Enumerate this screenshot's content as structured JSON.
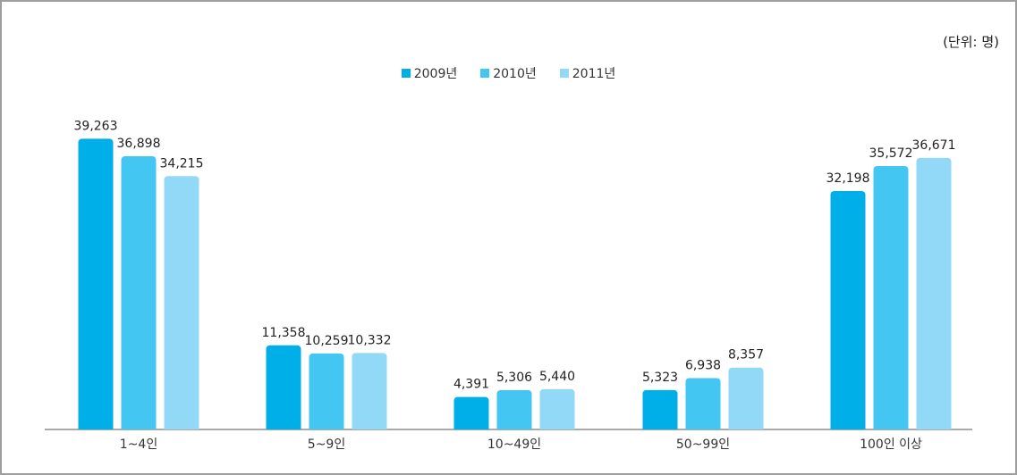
{
  "chart_data": {
    "type": "bar",
    "unit_label": "(단위:  명)",
    "categories": [
      "1~4인",
      "5~9인",
      "10~49인",
      "50~99인",
      "100인 이상"
    ],
    "series": [
      {
        "name": "2009년",
        "color": "#00aee8",
        "values": [
          39263,
          11358,
          4391,
          5323,
          32198
        ],
        "labels": [
          "39,263",
          "11,358",
          "4,391",
          "5,323",
          "32,198"
        ]
      },
      {
        "name": "2010년",
        "color": "#44c6f3",
        "values": [
          36898,
          10259,
          5306,
          6938,
          35572
        ],
        "labels": [
          "36,898",
          "10,259",
          "5,306",
          "6,938",
          "35,572"
        ]
      },
      {
        "name": "2011년",
        "color": "#92d9f7",
        "values": [
          34215,
          10332,
          5440,
          8357,
          36671
        ],
        "labels": [
          "34,215",
          "10,332",
          "5,440",
          "8,357",
          "36,671"
        ]
      }
    ],
    "ylim": [
      0,
      41000
    ],
    "legend_position": "top-center",
    "grid": false
  }
}
